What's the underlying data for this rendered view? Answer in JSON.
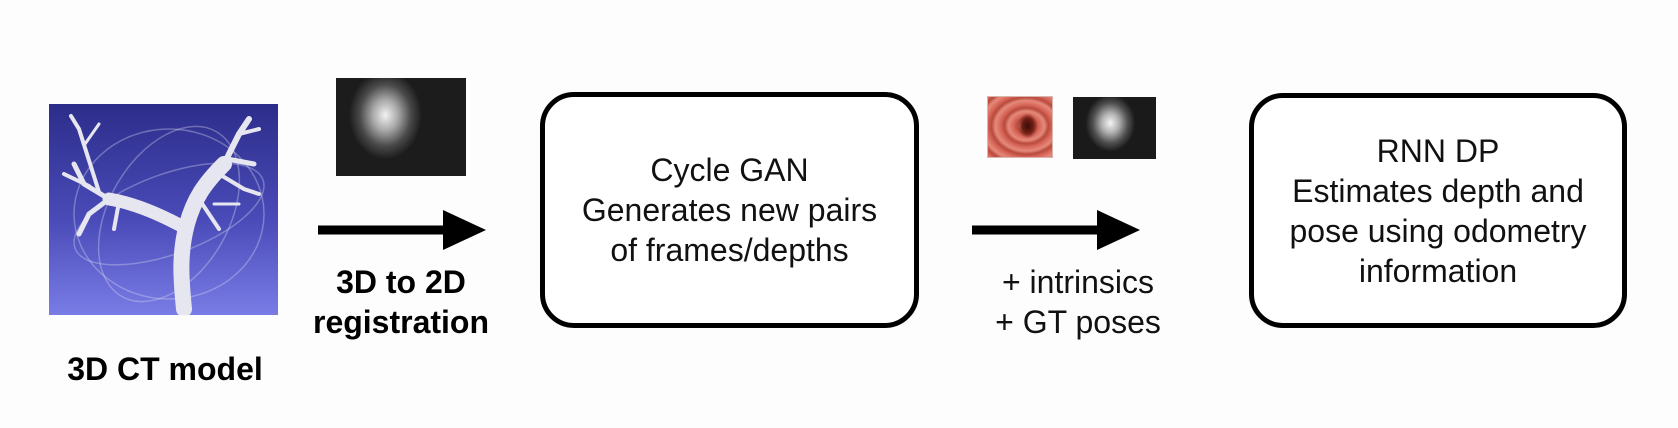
{
  "stages": {
    "ct_model": {
      "label": "3D CT model"
    },
    "registration": {
      "label_line1": "3D to 2D",
      "label_line2": "registration"
    },
    "cycle_gan": {
      "line1": "Cycle GAN",
      "line2": "Generates new pairs",
      "line3": "of frames/depths"
    },
    "extras": {
      "line1": "+ intrinsics",
      "line2": "+ GT poses"
    },
    "rnn_dp": {
      "line1": "RNN DP",
      "line2": "Estimates depth and",
      "line3": "pose using odometry",
      "line4": "information"
    }
  },
  "colors": {
    "ct_background": "#4a4bb8",
    "airway": "#e8e8f0",
    "arrow": "#000000",
    "box_border": "#000000"
  }
}
